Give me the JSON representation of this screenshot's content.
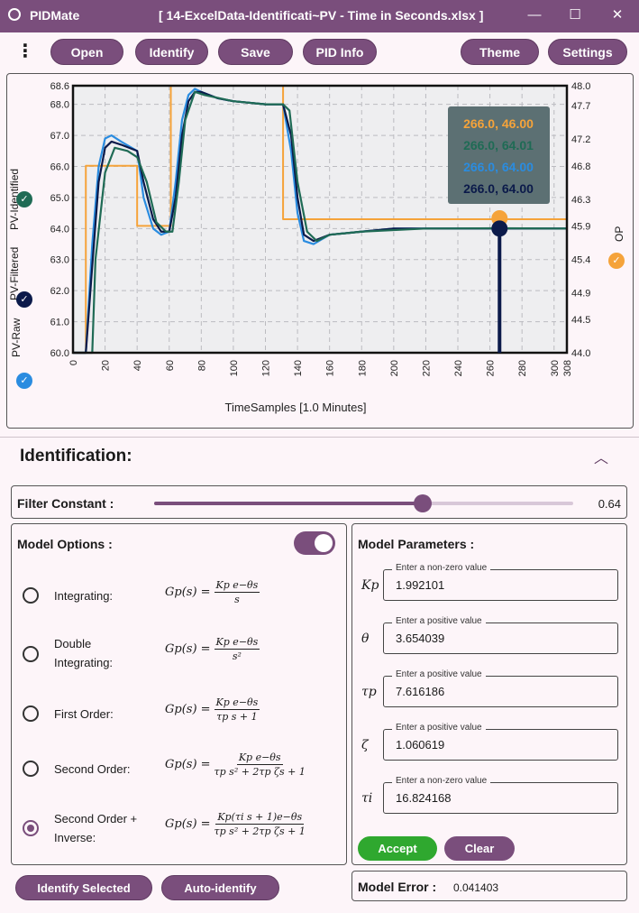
{
  "window": {
    "app_name": "PIDMate",
    "file_title": "[ 14-ExcelData-Identificati~PV - Time in Seconds.xlsx ]",
    "minimize": "—",
    "maximize": "☐",
    "close": "✕"
  },
  "toolbar": {
    "menu_icon": "more-vertical-icon",
    "open": "Open",
    "identify": "Identify",
    "save": "Save",
    "pid_info": "PID Info",
    "theme": "Theme",
    "settings": "Settings"
  },
  "chart": {
    "left_labels": [
      "PV-Identified",
      "PV-Filtered",
      "PV-Raw"
    ],
    "right_label": "OP",
    "xlabel": "TimeSamples [1.0 Minutes]",
    "check_icons": [
      "check-circle-icon",
      "check-circle-icon",
      "check-circle-icon",
      "check-circle-icon"
    ],
    "tooltip": [
      "266.0, 46.00",
      "266.0, 64.01",
      "266.0, 64.00",
      "266.0, 64.00"
    ]
  },
  "chart_data": {
    "type": "line",
    "xlabel": "TimeSamples [1.0 Minutes]",
    "ylabel": "",
    "y2label": "OP",
    "xlim": [
      0,
      308
    ],
    "ylim": [
      60.0,
      68.6
    ],
    "y2lim": [
      44.0,
      48.0
    ],
    "x_ticks": [
      0,
      20,
      40,
      60,
      80,
      100,
      120,
      140,
      160,
      180,
      200,
      220,
      240,
      260,
      280,
      300,
      308
    ],
    "y_ticks": [
      60.0,
      61.0,
      62.0,
      63.0,
      64.0,
      65.0,
      66.0,
      67.0,
      68.0,
      68.6
    ],
    "y2_ticks": [
      44.0,
      44.5,
      44.9,
      45.4,
      45.9,
      46.3,
      46.8,
      47.2,
      47.7,
      48.0
    ],
    "grid": true,
    "cursor_x": 266,
    "series": [
      {
        "name": "OP",
        "color": "#f5a33a",
        "axis": "right",
        "x": [
          0,
          8,
          8,
          40,
          40,
          61,
          61,
          131,
          131,
          308
        ],
        "y": [
          44.0,
          44.0,
          46.8,
          46.8,
          45.9,
          45.9,
          48.0,
          48.0,
          46.0,
          46.0
        ]
      },
      {
        "name": "PV-Raw",
        "color": "#2a8ce0",
        "axis": "left",
        "x": [
          0,
          8,
          12,
          16,
          20,
          24,
          30,
          40,
          44,
          50,
          55,
          60,
          64,
          68,
          72,
          76,
          80,
          90,
          100,
          120,
          131,
          136,
          140,
          144,
          150,
          160,
          180,
          200,
          230,
          266,
          308
        ],
        "y": [
          60.0,
          60.0,
          63.5,
          66.0,
          66.9,
          67.0,
          66.8,
          66.5,
          65.0,
          64.0,
          63.8,
          63.9,
          65.5,
          67.5,
          68.3,
          68.5,
          68.4,
          68.2,
          68.1,
          68.0,
          68.0,
          66.5,
          64.5,
          63.6,
          63.5,
          63.8,
          63.9,
          64.0,
          64.0,
          64.0,
          64.0
        ]
      },
      {
        "name": "PV-Filtered",
        "color": "#0b1a4a",
        "axis": "left",
        "x": [
          0,
          8,
          12,
          16,
          20,
          24,
          30,
          40,
          44,
          50,
          55,
          60,
          64,
          68,
          72,
          76,
          80,
          90,
          100,
          120,
          131,
          136,
          140,
          144,
          150,
          160,
          180,
          200,
          230,
          266,
          308
        ],
        "y": [
          60.0,
          60.0,
          62.8,
          65.5,
          66.6,
          66.8,
          66.7,
          66.5,
          65.5,
          64.3,
          63.9,
          63.9,
          65.0,
          67.0,
          68.1,
          68.4,
          68.4,
          68.2,
          68.1,
          68.0,
          68.0,
          67.0,
          65.0,
          63.8,
          63.6,
          63.8,
          63.9,
          64.0,
          64.0,
          64.0,
          64.0
        ]
      },
      {
        "name": "PV-Identified",
        "color": "#1f6b55",
        "axis": "left",
        "x": [
          0,
          12,
          14,
          20,
          26,
          34,
          40,
          46,
          52,
          58,
          62,
          66,
          70,
          76,
          82,
          100,
          120,
          131,
          135,
          140,
          146,
          152,
          160,
          180,
          220,
          266,
          308
        ],
        "y": [
          60.0,
          60.0,
          63.0,
          65.8,
          66.6,
          66.5,
          66.3,
          65.5,
          64.2,
          63.9,
          63.9,
          65.5,
          67.5,
          68.4,
          68.3,
          68.1,
          68.0,
          68.0,
          67.8,
          65.5,
          63.9,
          63.6,
          63.8,
          63.9,
          64.0,
          64.01,
          64.0
        ]
      }
    ]
  },
  "identification": {
    "title": "Identification:",
    "collapse_icon": "chevron-up-icon",
    "filter_label": "Filter Constant :",
    "filter_value": "0.64",
    "filter_fraction": 0.64
  },
  "model_options": {
    "title": "Model Options :",
    "toggle_on": true,
    "items": [
      {
        "label_1": "Integrating:",
        "label_2": "",
        "formula_lhs": "Gp(s) =",
        "num": "Kp e−θs",
        "den": "s",
        "selected": false
      },
      {
        "label_1": "Double",
        "label_2": "Integrating:",
        "formula_lhs": "Gp(s) =",
        "num": "Kp e−θs",
        "den": "s²",
        "selected": false
      },
      {
        "label_1": "First Order:",
        "label_2": "",
        "formula_lhs": "Gp(s) =",
        "num": "Kp e−θs",
        "den": "τp s + 1",
        "selected": false
      },
      {
        "label_1": "Second Order:",
        "label_2": "",
        "formula_lhs": "Gp(s) =",
        "num": "Kp e−θs",
        "den": "τp s² + 2τp ζs + 1",
        "selected": false
      },
      {
        "label_1": "Second Order +",
        "label_2": "Inverse:",
        "formula_lhs": "Gp(s) =",
        "num": "Kp(τi s + 1)e−θs",
        "den": "τp s² + 2τp ζs + 1",
        "selected": true
      }
    ]
  },
  "model_parameters": {
    "title": "Model Parameters :",
    "items": [
      {
        "symbol": "Kp",
        "hint": "Enter a non-zero value",
        "value": "1.992101"
      },
      {
        "symbol": "θ",
        "hint": "Enter a positive value",
        "value": "3.654039"
      },
      {
        "symbol": "τp",
        "hint": "Enter a positive value",
        "value": "7.616186"
      },
      {
        "symbol": "ζ",
        "hint": "Enter a positive value",
        "value": "1.060619"
      },
      {
        "symbol": "τi",
        "hint": "Enter a non-zero value",
        "value": "16.824168"
      }
    ],
    "accept": "Accept",
    "clear": "Clear"
  },
  "bottom": {
    "identify_selected": "Identify Selected",
    "auto_identify": "Auto-identify",
    "model_error_label": "Model Error :",
    "model_error_value": "0.041403"
  },
  "colors": {
    "accent": "#7a4e7c",
    "accept": "#2fa82f",
    "op": "#f5a33a",
    "pv_raw": "#2a8ce0",
    "pv_filtered": "#0b1a4a",
    "pv_identified": "#1f6b55"
  }
}
